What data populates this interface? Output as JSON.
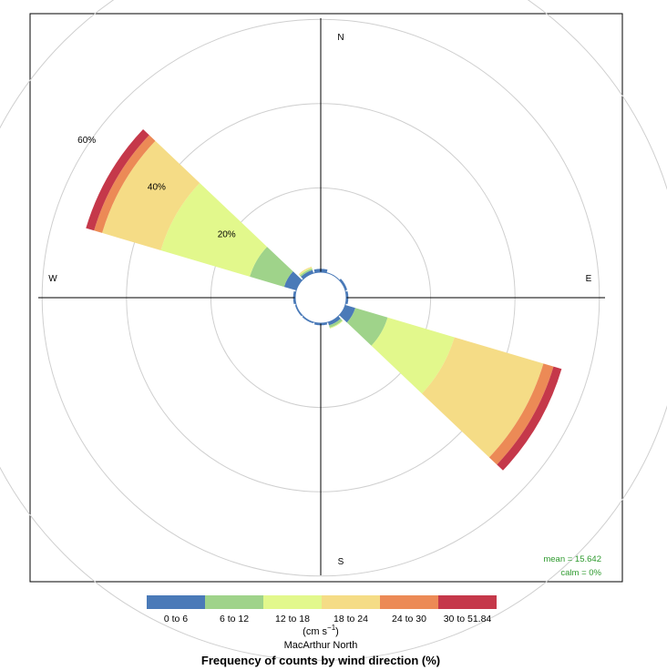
{
  "chart_data": {
    "type": "windrose",
    "compass": {
      "n": "N",
      "e": "E",
      "s": "S",
      "w": "W"
    },
    "radial_ticks": [
      {
        "value": 20,
        "label": "20%"
      },
      {
        "value": 40,
        "label": "40%"
      },
      {
        "value": 60,
        "label": "60%"
      }
    ],
    "extra_grid_rings": [
      80
    ],
    "grid": true,
    "calm_ring": true,
    "speed_bins": [
      {
        "label": "0 to 6",
        "color": "#4a7ab8"
      },
      {
        "label": "6 to 12",
        "color": "#9fd38a"
      },
      {
        "label": "12 to 18",
        "color": "#e2f88c"
      },
      {
        "label": "18 to 24",
        "color": "#f5dc86"
      },
      {
        "label": "24 to 30",
        "color": "#ec8a56"
      },
      {
        "label": "30 to 51.84",
        "color": "#c5384a"
      }
    ],
    "sectors": [
      {
        "direction": 300,
        "cumulative": [
          3.0,
          11.5,
          33.5,
          48.0,
          50.0,
          52.0
        ]
      },
      {
        "direction": 120,
        "cumulative": [
          2.5,
          10.5,
          27.0,
          49.0,
          51.5,
          53.5
        ]
      },
      {
        "direction": 330,
        "cumulative": [
          0.8,
          1.2,
          1.4,
          1.6
        ]
      },
      {
        "direction": 0,
        "cumulative": [
          0.8
        ]
      },
      {
        "direction": 60,
        "cumulative": [
          0.5
        ]
      },
      {
        "direction": 90,
        "cumulative": [
          0.5
        ]
      },
      {
        "direction": 150,
        "cumulative": [
          0.8,
          1.4,
          1.6
        ]
      },
      {
        "direction": 180,
        "cumulative": [
          0.5
        ]
      },
      {
        "direction": 210,
        "cumulative": [
          0.3
        ]
      },
      {
        "direction": 240,
        "cumulative": [
          0.3
        ]
      },
      {
        "direction": 270,
        "cumulative": [
          0.5
        ]
      }
    ],
    "stats": {
      "mean": "mean = 15.642",
      "calm": "calm = 0%"
    },
    "legend_placement": "bottom",
    "legend_unit": "(cm s",
    "legend_unit_exponent": "−1",
    "legend_unit_close": ")",
    "subtitle": "MacArthur North",
    "title": "Frequency of counts by wind direction (%)"
  }
}
